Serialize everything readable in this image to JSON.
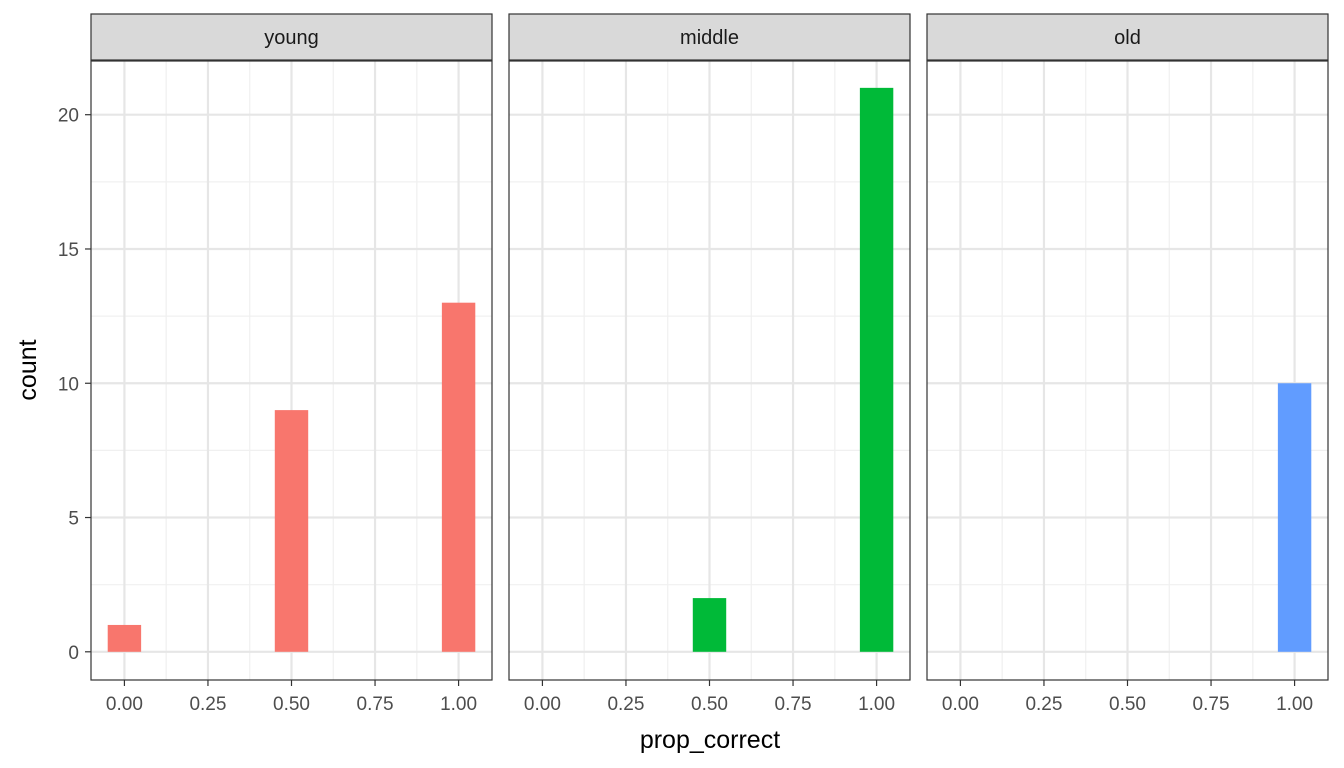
{
  "chart_data": {
    "type": "bar",
    "layout": "faceted (3 panels, shared y axis)",
    "xlabel": "prop_correct",
    "ylabel": "count",
    "xlim": [
      -0.1,
      1.1
    ],
    "ylim": [
      -1.05,
      22
    ],
    "x_ticks": [
      "0.00",
      "0.25",
      "0.50",
      "0.75",
      "1.00"
    ],
    "x_tick_values": [
      0,
      0.25,
      0.5,
      0.75,
      1
    ],
    "y_ticks": [
      "0",
      "5",
      "10",
      "15",
      "20"
    ],
    "y_tick_values": [
      0,
      5,
      10,
      15,
      20
    ],
    "bin_width": 0.1,
    "grid": true,
    "legend": "none",
    "facets": [
      {
        "label": "young",
        "color": "#F8766D",
        "bars": [
          {
            "x": 0.0,
            "count": 1
          },
          {
            "x": 0.5,
            "count": 9
          },
          {
            "x": 1.0,
            "count": 13
          }
        ]
      },
      {
        "label": "middle",
        "color": "#00BA38",
        "bars": [
          {
            "x": 0.5,
            "count": 2
          },
          {
            "x": 1.0,
            "count": 21
          }
        ]
      },
      {
        "label": "old",
        "color": "#619CFF",
        "bars": [
          {
            "x": 1.0,
            "count": 10
          }
        ]
      }
    ]
  }
}
